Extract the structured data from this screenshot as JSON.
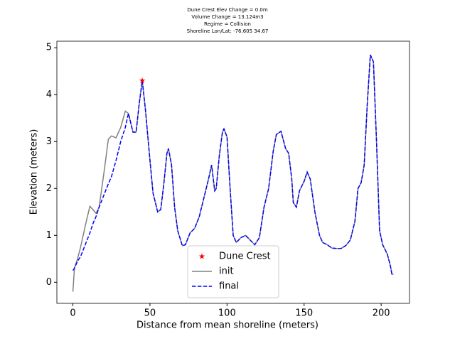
{
  "chart_data": {
    "type": "line",
    "title_lines": [
      "Dune Crest Elev Change = 0.0m",
      "Volume Change = 13.124m3",
      "Regime = Collision",
      "Shoreline Lon/Lat: -76.605 34.67"
    ],
    "x_label": "Distance from mean shoreline (meters)",
    "y_label": "Elevation (meters)",
    "xlim": [
      -10.4,
      218.4
    ],
    "xticks": [
      0,
      50,
      100,
      150,
      200
    ],
    "ylim": [
      -0.45,
      5.14
    ],
    "yticks": [
      0,
      1,
      2,
      3,
      4,
      5
    ],
    "legend": "lower center",
    "crest": {
      "name": "Dune Crest",
      "color": "#ff0000",
      "x": 45,
      "y": 4.3
    },
    "x": [
      0,
      1,
      3,
      5,
      8,
      11,
      13,
      15,
      17,
      20,
      23,
      25,
      28,
      31,
      34,
      36,
      39,
      41,
      43,
      45,
      47,
      50,
      52,
      55,
      57,
      59,
      61,
      62,
      64,
      66,
      68,
      71,
      73,
      76,
      79,
      82,
      85,
      88,
      90,
      92,
      93,
      95,
      97,
      98,
      100,
      102,
      104,
      106,
      109,
      112,
      115,
      118,
      121,
      124,
      127,
      130,
      132,
      135,
      138,
      140,
      142,
      143,
      145,
      147,
      150,
      152,
      154,
      157,
      160,
      162,
      165,
      168,
      171,
      174,
      177,
      180,
      183,
      185,
      187,
      189,
      191,
      193,
      195,
      197,
      199,
      201,
      204,
      206,
      207,
      208
    ],
    "series": [
      {
        "name": "init",
        "color": "#808080",
        "dash": false,
        "values": [
          -0.2,
          0.3,
          0.5,
          0.75,
          1.2,
          1.62,
          1.55,
          1.47,
          1.6,
          2.3,
          3.05,
          3.12,
          3.08,
          3.3,
          3.65,
          3.6,
          3.2,
          3.2,
          3.8,
          4.3,
          3.7,
          2.6,
          1.9,
          1.5,
          1.55,
          2.1,
          2.75,
          2.85,
          2.5,
          1.6,
          1.1,
          0.78,
          0.8,
          1.05,
          1.15,
          1.4,
          1.8,
          2.2,
          2.5,
          1.95,
          2.0,
          2.7,
          3.2,
          3.27,
          3.1,
          2.0,
          1.0,
          0.85,
          0.95,
          1.0,
          0.9,
          0.8,
          0.95,
          1.6,
          2.0,
          2.8,
          3.15,
          3.22,
          2.85,
          2.75,
          2.2,
          1.7,
          1.6,
          1.95,
          2.15,
          2.35,
          2.2,
          1.5,
          1.0,
          0.85,
          0.8,
          0.73,
          0.72,
          0.72,
          0.78,
          0.9,
          1.3,
          2.0,
          2.12,
          2.5,
          3.8,
          4.85,
          4.7,
          3.0,
          1.1,
          0.8,
          0.6,
          0.35,
          0.17,
          0.17
        ]
      },
      {
        "name": "final",
        "color": "#0000ff",
        "dash": true,
        "values": [
          0.25,
          0.3,
          0.45,
          0.55,
          0.8,
          1.05,
          1.25,
          1.4,
          1.6,
          1.85,
          2.1,
          2.25,
          2.6,
          3.0,
          3.3,
          3.6,
          3.2,
          3.2,
          3.8,
          4.3,
          3.7,
          2.6,
          1.9,
          1.5,
          1.55,
          2.1,
          2.75,
          2.85,
          2.5,
          1.6,
          1.1,
          0.78,
          0.8,
          1.05,
          1.15,
          1.4,
          1.8,
          2.2,
          2.5,
          1.95,
          2.0,
          2.7,
          3.2,
          3.27,
          3.1,
          2.0,
          1.0,
          0.85,
          0.95,
          1.0,
          0.9,
          0.8,
          0.95,
          1.6,
          2.0,
          2.8,
          3.15,
          3.22,
          2.85,
          2.75,
          2.2,
          1.7,
          1.6,
          1.95,
          2.15,
          2.35,
          2.2,
          1.5,
          1.0,
          0.85,
          0.8,
          0.73,
          0.72,
          0.72,
          0.78,
          0.9,
          1.3,
          2.0,
          2.12,
          2.5,
          3.8,
          4.85,
          4.7,
          3.0,
          1.1,
          0.8,
          0.6,
          0.35,
          0.17,
          0.17
        ]
      }
    ]
  }
}
